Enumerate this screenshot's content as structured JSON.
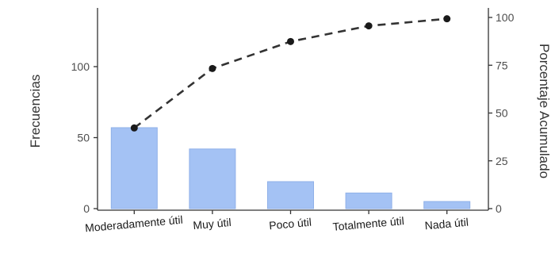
{
  "chart_data": {
    "type": "bar",
    "categories": [
      "Moderadamente útil",
      "Muy útil",
      "Poco útil",
      "Totalmente útil",
      "Nada útil"
    ],
    "series": [
      {
        "type": "bar",
        "axis": "left",
        "values": [
          57,
          42,
          19,
          11,
          5
        ]
      },
      {
        "type": "line",
        "axis": "right",
        "style": "dashed",
        "values": [
          42.2,
          73.3,
          87.4,
          95.6,
          99.3
        ]
      }
    ],
    "ylabel": "Frecuencias",
    "y2label": "Porcentaje Acumulado",
    "ylim": [
      -5,
      140
    ],
    "y2lim": [
      -3.6,
      104
    ],
    "yticks": [
      0,
      50,
      100
    ],
    "y2ticks": [
      0,
      25,
      50,
      75,
      100
    ],
    "grid": false,
    "colors": {
      "bar_fill": "#a4c2f4",
      "bar_stroke": "#8fb0e8",
      "line": "#333333",
      "point": "#1a1a1a"
    }
  }
}
